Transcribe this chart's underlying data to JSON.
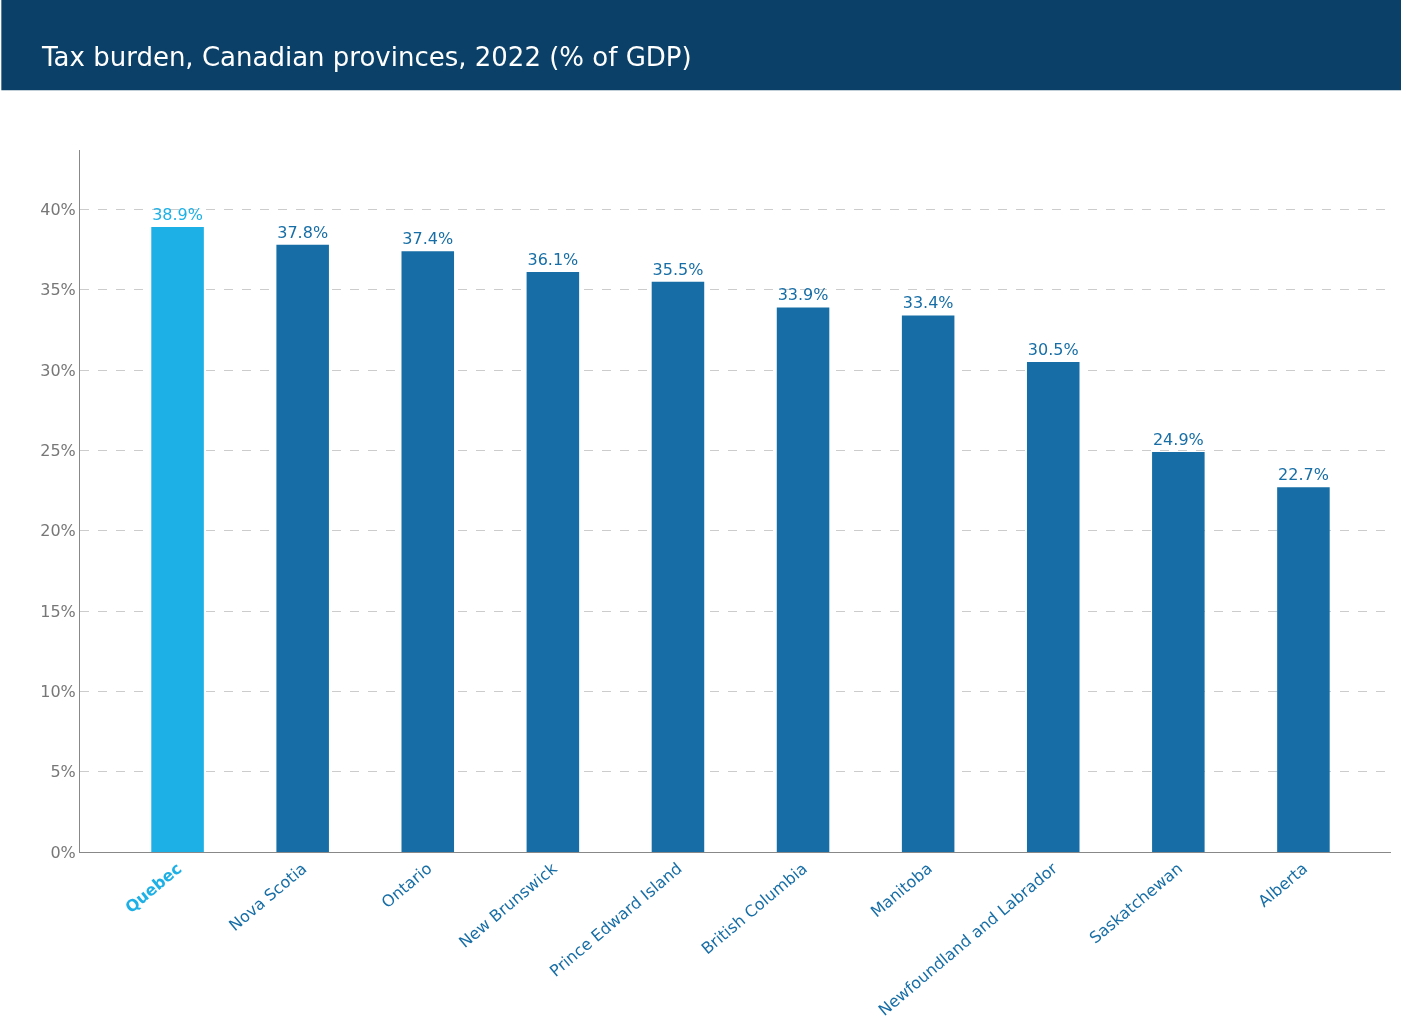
{
  "chart_data": {
    "type": "bar",
    "title": "Tax burden, Canadian provinces, 2022 (% of GDP)",
    "categories": [
      "Quebec",
      "Nova Scotia",
      "Ontario",
      "New Brunswick",
      "Prince Edward Island",
      "British Columbia",
      "Manitoba",
      "Newfoundland and Labrador",
      "Saskatchewan",
      "Alberta"
    ],
    "values": [
      38.9,
      37.8,
      37.4,
      36.1,
      35.5,
      33.9,
      33.4,
      30.5,
      24.9,
      22.7
    ],
    "value_labels": [
      "38.9%",
      "37.8%",
      "37.4%",
      "36.1%",
      "35.5%",
      "33.9%",
      "33.4%",
      "30.5%",
      "24.9%",
      "22.7%"
    ],
    "colors": [
      "#1cb0e6",
      "#176ea6",
      "#176ea6",
      "#176ea6",
      "#176ea6",
      "#176ea6",
      "#176ea6",
      "#176ea6",
      "#176ea6",
      "#176ea6"
    ],
    "ylim": [
      0,
      43.7
    ],
    "yticks": [
      {
        "value": 0,
        "label": "0%"
      },
      {
        "value": 5,
        "label": "5%"
      },
      {
        "value": 10,
        "label": "10%"
      },
      {
        "value": 15,
        "label": "15%"
      },
      {
        "value": 20,
        "label": "20%"
      },
      {
        "value": 25,
        "label": "25%"
      },
      {
        "value": 30,
        "label": "30%"
      },
      {
        "value": 35,
        "label": "35%"
      },
      {
        "value": 40,
        "label": "40%"
      }
    ],
    "grid": "y",
    "legend": false
  }
}
